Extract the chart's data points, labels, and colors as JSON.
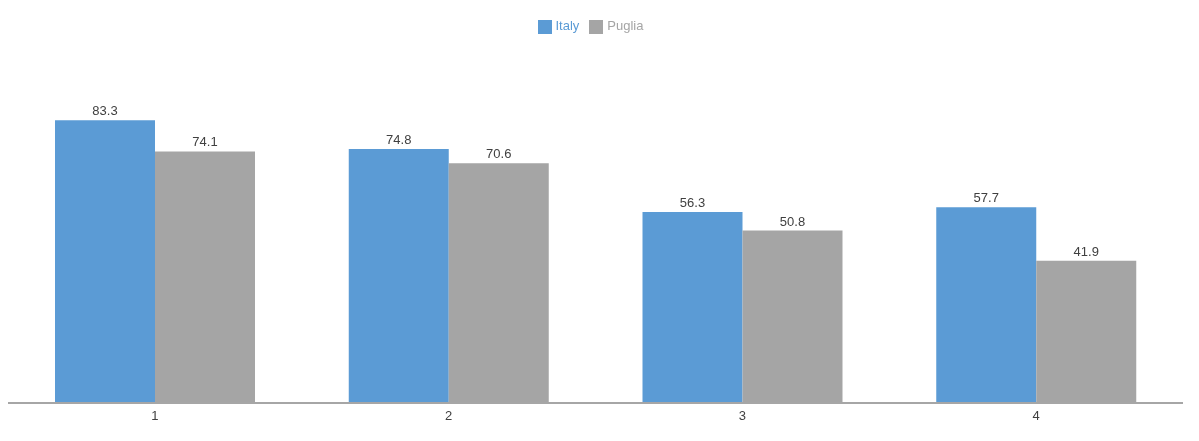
{
  "chart_data": {
    "type": "bar",
    "categories": [
      "1",
      "2",
      "3",
      "4"
    ],
    "series": [
      {
        "name": "Italy",
        "color": "#5b9bd5",
        "values": [
          83.3,
          74.8,
          56.3,
          57.7
        ]
      },
      {
        "name": "Puglia",
        "color": "#a5a5a5",
        "values": [
          74.1,
          70.6,
          50.8,
          41.9
        ]
      }
    ],
    "data_labels": true,
    "legend": "top",
    "grid": false
  }
}
